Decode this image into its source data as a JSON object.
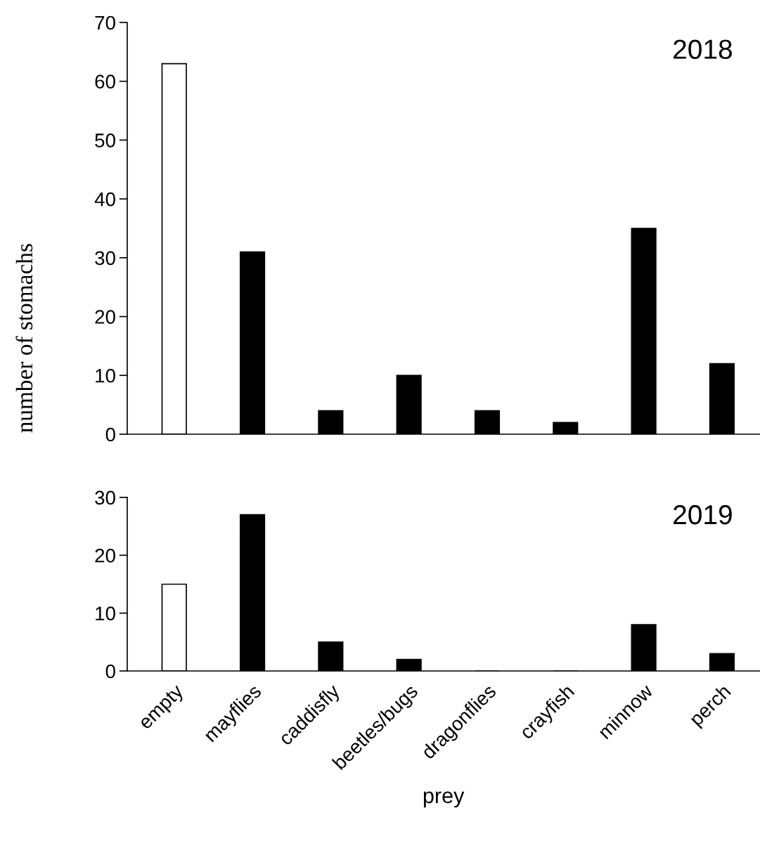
{
  "chart_data": [
    {
      "type": "bar",
      "title": "2018",
      "ylabel": "number of stomachs",
      "categories": [
        null,
        null,
        null,
        null,
        null,
        null,
        null,
        null
      ],
      "values": [
        63,
        31,
        4,
        10,
        4,
        2,
        35,
        12
      ],
      "colors": [
        "#ffffff",
        "#000000",
        "#000000",
        "#000000",
        "#000000",
        "#000000",
        "#000000",
        "#000000"
      ],
      "ylim": [
        0,
        70
      ],
      "yticks": [
        0,
        10,
        20,
        30,
        40,
        50,
        60,
        70
      ],
      "tick_labels": "y",
      "grid": false,
      "legend": false
    },
    {
      "type": "bar",
      "title": "2019",
      "xlabel": "prey",
      "categories": [
        "empty",
        "mayflies",
        "caddisfly",
        "beetles/bugs",
        "dragonflies",
        "crayfish",
        "minnow",
        "perch"
      ],
      "values": [
        15,
        27,
        5,
        2,
        0,
        0,
        8,
        3
      ],
      "colors": [
        "#ffffff",
        "#000000",
        "#000000",
        "#000000",
        "#000000",
        "#000000",
        "#000000",
        "#000000"
      ],
      "ylim": [
        0,
        30
      ],
      "yticks": [
        0,
        10,
        20,
        30
      ],
      "grid": false,
      "legend": false
    }
  ]
}
